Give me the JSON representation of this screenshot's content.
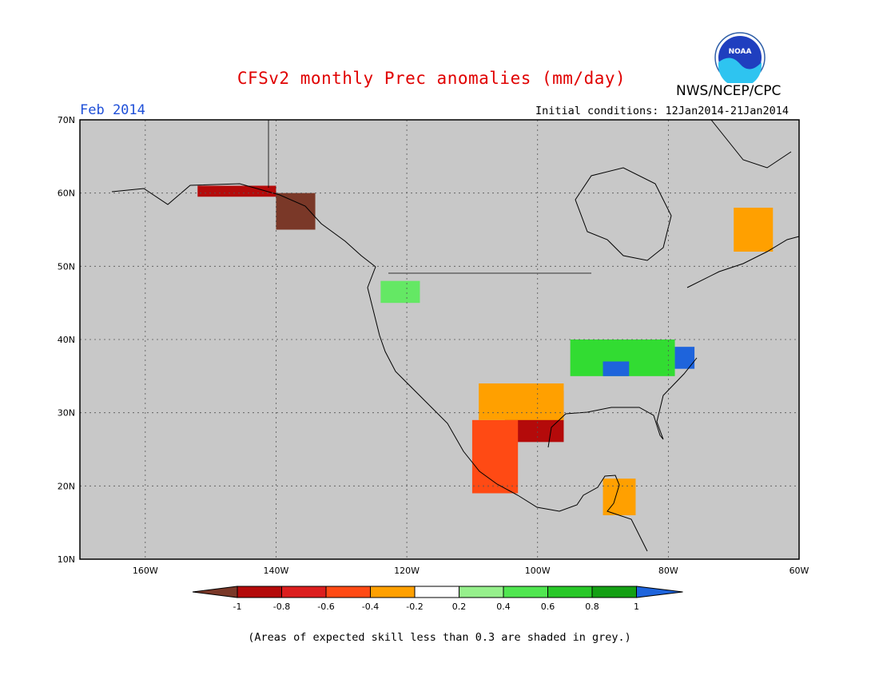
{
  "header": {
    "title": "CFSv2 monthly Prec anomalies (mm/day)",
    "agency": "NWS/NCEP/CPC",
    "logo_text": "NOAA",
    "period": "Feb 2014",
    "initial_conditions": "Initial conditions: 12Jan2014-21Jan2014"
  },
  "map": {
    "projection": "lat-lon",
    "lon_range": [
      -170,
      -60
    ],
    "lat_range": [
      10,
      70
    ],
    "lon_ticks": [
      {
        "value": -160,
        "label": "160W"
      },
      {
        "value": -140,
        "label": "140W"
      },
      {
        "value": -120,
        "label": "120W"
      },
      {
        "value": -100,
        "label": "100W"
      },
      {
        "value": -80,
        "label": "80W"
      },
      {
        "value": -60,
        "label": "60W"
      }
    ],
    "lat_ticks": [
      {
        "value": 10,
        "label": "10N"
      },
      {
        "value": 20,
        "label": "20N"
      },
      {
        "value": 30,
        "label": "30N"
      },
      {
        "value": 40,
        "label": "40N"
      },
      {
        "value": 50,
        "label": "50N"
      },
      {
        "value": 60,
        "label": "60N"
      },
      {
        "value": 70,
        "label": "70N"
      }
    ],
    "grid": "dotted",
    "background_color": "#c8c8c8",
    "anomaly_regions": [
      {
        "label": "Texas / N. Mexico",
        "color": "#b40a0a",
        "lon": [
          -105,
          -96
        ],
        "lat": [
          26,
          33
        ]
      },
      {
        "label": "W. Mexico",
        "color": "#ff4a14",
        "lon": [
          -110,
          -103
        ],
        "lat": [
          19,
          29
        ]
      },
      {
        "label": "SW US / N. Mexico",
        "color": "#ffa000",
        "lon": [
          -109,
          -96
        ],
        "lat": [
          29,
          34
        ]
      },
      {
        "label": "Ohio Valley",
        "color": "#32dc32",
        "lon": [
          -95,
          -79
        ],
        "lat": [
          35,
          40
        ]
      },
      {
        "label": "Mid-Atlantic",
        "color": "#1e64dc",
        "lon": [
          -79,
          -76
        ],
        "lat": [
          36,
          39
        ]
      },
      {
        "label": "Tennessee",
        "color": "#1e64dc",
        "lon": [
          -90,
          -86
        ],
        "lat": [
          35,
          37
        ]
      },
      {
        "label": "Pacific NW",
        "color": "#64e864",
        "lon": [
          -124,
          -118
        ],
        "lat": [
          45,
          48
        ]
      },
      {
        "label": "SE Alaska",
        "color": "#7a3828",
        "lon": [
          -140,
          -134
        ],
        "lat": [
          55,
          60
        ]
      },
      {
        "label": "Gulf of Alaska coast",
        "color": "#b40a0a",
        "lon": [
          -152,
          -140
        ],
        "lat": [
          59.5,
          61
        ]
      },
      {
        "label": "E. Canada",
        "color": "#ffa000",
        "lon": [
          -70,
          -64
        ],
        "lat": [
          52,
          58
        ]
      },
      {
        "label": "Yucatan",
        "color": "#ffa000",
        "lon": [
          -90,
          -85
        ],
        "lat": [
          16,
          21
        ]
      }
    ]
  },
  "colorbar": {
    "labels": [
      "-1",
      "-0.8",
      "-0.6",
      "-0.4",
      "-0.2",
      "0.2",
      "0.4",
      "0.6",
      "0.8",
      "1"
    ],
    "bins": [
      {
        "color": "#7a3828"
      },
      {
        "color": "#b40a0a"
      },
      {
        "color": "#dc1e1e"
      },
      {
        "color": "#ff4a14"
      },
      {
        "color": "#ffa000"
      },
      {
        "color": "#ffffff"
      },
      {
        "color": "#96f08c"
      },
      {
        "color": "#50e650"
      },
      {
        "color": "#28c828"
      },
      {
        "color": "#14a014"
      },
      {
        "color": "#1e64dc"
      }
    ]
  },
  "footer": {
    "note": "(Areas of expected skill less than 0.3 are shaded in grey.)"
  }
}
